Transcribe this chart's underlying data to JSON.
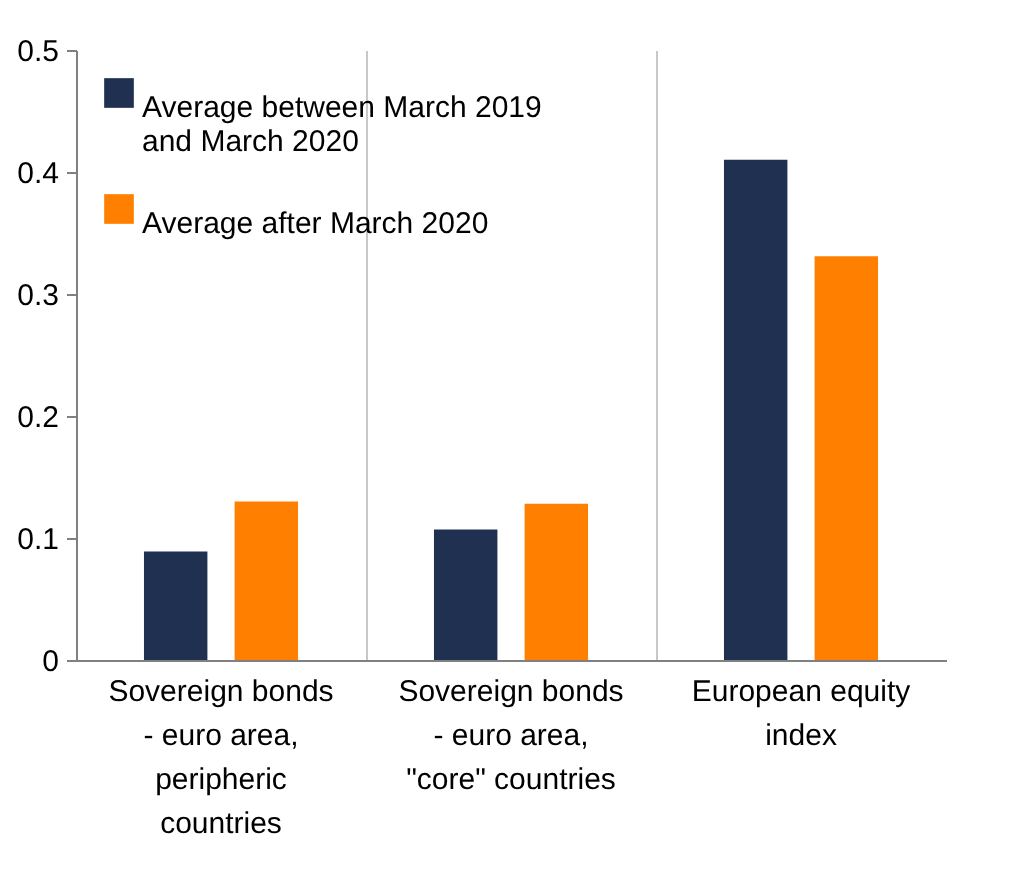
{
  "chart_data": {
    "type": "bar",
    "categories": [
      "Sovereign bonds - euro area, peripheric countries",
      "Sovereign bonds - euro area, \"core\" countries",
      "European equity index"
    ],
    "series": [
      {
        "name": "Average between March 2019 and March 2020",
        "color": "#1f3050",
        "values": [
          0.089,
          0.107,
          0.41
        ]
      },
      {
        "name": "Average after March 2020",
        "color": "#ff8000",
        "values": [
          0.13,
          0.128,
          0.331
        ]
      }
    ],
    "ylim": [
      0,
      0.5
    ],
    "yticks": [
      0,
      0.1,
      0.2,
      0.3,
      0.4,
      0.5
    ],
    "grid": "x",
    "legend": "top left"
  }
}
